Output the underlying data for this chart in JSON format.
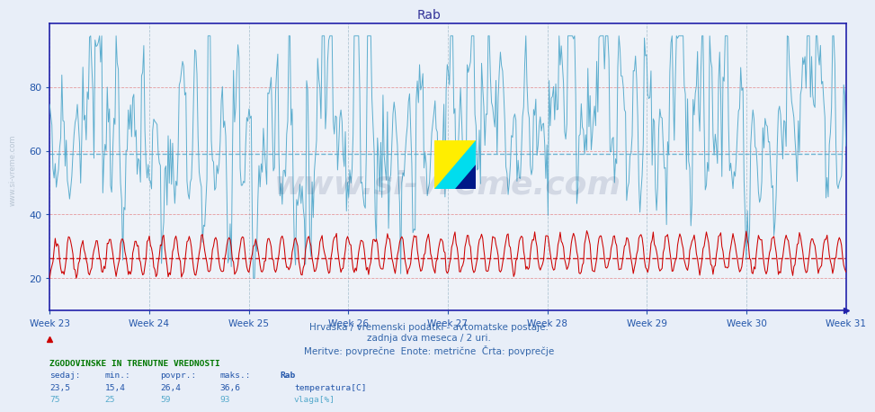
{
  "title": "Rab",
  "subtitle1": "Hrvaška / vremenski podatki - avtomatske postaje.",
  "subtitle2": "zadnja dva meseca / 2 uri.",
  "subtitle3": "Meritve: povprečne  Enote: metrične  Črta: povprečje",
  "xlabel_weeks": [
    "Week 23",
    "Week 24",
    "Week 25",
    "Week 26",
    "Week 27",
    "Week 28",
    "Week 29",
    "Week 30",
    "Week 31"
  ],
  "ylim": [
    10,
    100
  ],
  "yticks": [
    20,
    40,
    60,
    80
  ],
  "temp_avg": 26.4,
  "temp_min": 15.4,
  "temp_max": 36.6,
  "vlaga_avg": 59,
  "vlaga_min": 25,
  "vlaga_max": 93,
  "temp_color": "#cc0000",
  "vlaga_color": "#55aacc",
  "ref_line_temp": 26.4,
  "ref_line_vlaga": 59.0,
  "bg_color": "#e8eef8",
  "plot_bg": "#eef2f8",
  "border_color": "#2222aa",
  "grid_color_red": "#dd4444",
  "grid_color_blue": "#88aabb",
  "title_color": "#333399",
  "subtitle_color": "#3366aa",
  "label_color": "#2255aa",
  "legend_header_color": "#007700",
  "num_points": 720,
  "watermark": "www.si-vreme.com",
  "table_headers": [
    "sedaj:",
    "min.:",
    "povpr.:",
    "maks.:"
  ],
  "table_label_header": "Rab",
  "table_row1_values": [
    "23,5",
    "15,4",
    "26,4",
    "36,6"
  ],
  "table_row1_label": "temperatura[C]",
  "table_row2_values": [
    "75",
    "25",
    "59",
    "93"
  ],
  "table_row2_label": "vlaga[%]",
  "table_color_blue": "#2255aa",
  "table_color_red": "#cc0000",
  "table_color_cyan": "#55aacc"
}
